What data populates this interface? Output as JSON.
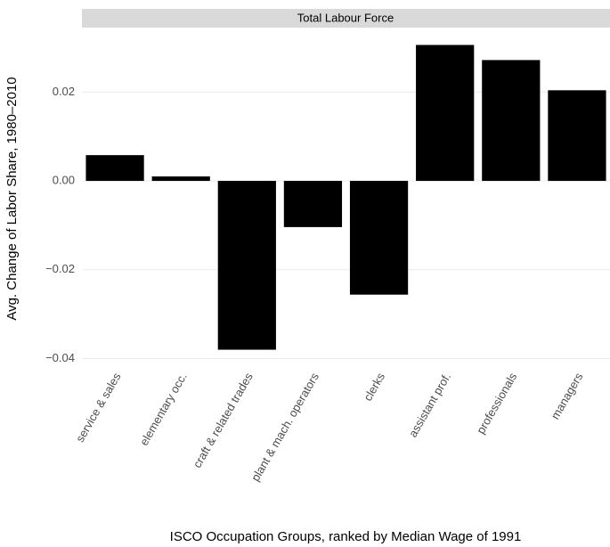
{
  "chart_data": {
    "type": "bar",
    "facet_title": "Total Labour Force",
    "x_label": "ISCO Occupation Groups, ranked by Median Wage of 1991",
    "y_label": "Avg. Change of Labor Share, 1980–2010",
    "categories": [
      "service & sales",
      "elementary occ.",
      "craft & related trades",
      "plant & mach. operators",
      "clerks",
      "assistant prof.",
      "professionals",
      "managers"
    ],
    "values": [
      0.0058,
      0.001,
      -0.038,
      -0.0104,
      -0.0256,
      0.0306,
      0.0272,
      0.0204
    ],
    "color": "#000000",
    "ylim": [
      -0.0415,
      0.0335
    ],
    "yticks": [
      {
        "value": -0.04,
        "label": "−0.04"
      },
      {
        "value": -0.02,
        "label": "−0.02"
      },
      {
        "value": 0,
        "label": "0.00"
      },
      {
        "value": 0.02,
        "label": "0.02"
      }
    ],
    "grid": true
  }
}
